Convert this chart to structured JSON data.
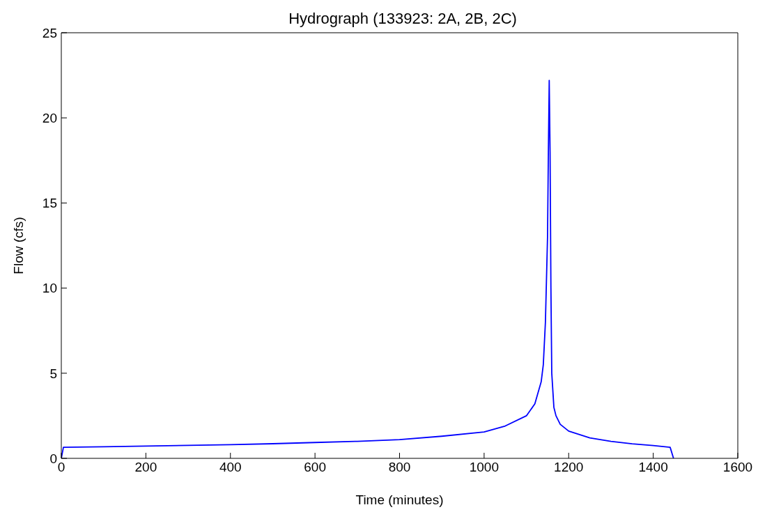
{
  "chart_data": {
    "type": "line",
    "title": "Hydrograph (133923: 2A, 2B, 2C)",
    "xlabel": "Time (minutes)",
    "ylabel": "Flow (cfs)",
    "x": [
      0,
      5,
      100,
      200,
      300,
      400,
      500,
      600,
      700,
      800,
      900,
      1000,
      1050,
      1100,
      1120,
      1135,
      1140,
      1145,
      1150,
      1152,
      1154,
      1156,
      1158,
      1160,
      1165,
      1170,
      1180,
      1200,
      1250,
      1300,
      1350,
      1400,
      1440,
      1448
    ],
    "series": [
      {
        "color": "#0000ff",
        "values": [
          0,
          0.65,
          0.68,
          0.72,
          0.76,
          0.8,
          0.86,
          0.93,
          1.0,
          1.1,
          1.3,
          1.55,
          1.9,
          2.5,
          3.2,
          4.5,
          5.5,
          8,
          13,
          18,
          22.2,
          18,
          10,
          5,
          3,
          2.5,
          2.0,
          1.6,
          1.2,
          1.0,
          0.85,
          0.75,
          0.65,
          0
        ]
      }
    ],
    "xlim": [
      0,
      1600
    ],
    "xticks": [
      0,
      200,
      400,
      600,
      800,
      1000,
      1200,
      1400,
      1600
    ],
    "ylim": [
      0,
      25
    ],
    "yticks": [
      0,
      5,
      10,
      15,
      20,
      25
    ],
    "legend": false,
    "marker": "none",
    "line_style": "solid"
  }
}
